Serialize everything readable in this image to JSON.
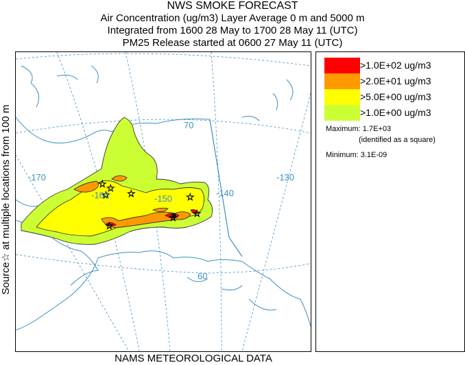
{
  "titles": {
    "line1": "NWS SMOKE FORECAST",
    "line2": "Air Concentration (ug/m3) Layer Average    0 m and  5000 m",
    "line3": "Integrated from 1600 28 May to 1700 28 May 11 (UTC)",
    "line4": "PM25 Release started at 0600 27 May 11 (UTC)"
  },
  "side_label": "Source☆ at multiple locations    from   100 m",
  "bottom_label": "NAMS METEOROLOGICAL DATA",
  "map": {
    "graticule_labels": {
      "lat_70": "70",
      "lat_60": "60",
      "lon_170": "-170",
      "lon_160": "-160",
      "lon_150": "-150",
      "lon_140": "-140",
      "lon_130": "-130"
    }
  },
  "legend": {
    "levels": [
      {
        "label": ">1.0E+02 ug/m3",
        "color": "#ff0000"
      },
      {
        "label": ">2.0E+01 ug/m3",
        "color": "#ff9900"
      },
      {
        "label": ">5.0E+00 ug/m3",
        "color": "#ffff00"
      },
      {
        "label": ">1.0E+00 ug/m3",
        "color": "#ccff33"
      }
    ],
    "maximum": "Maximum: 1.7E+03",
    "maximum_note": "(identified as a square)",
    "minimum": "Minimum: 3.1E-09"
  },
  "colors": {
    "coast": "#3a8fc4",
    "graticule": "#3a8fc4",
    "contour": "#333333"
  }
}
